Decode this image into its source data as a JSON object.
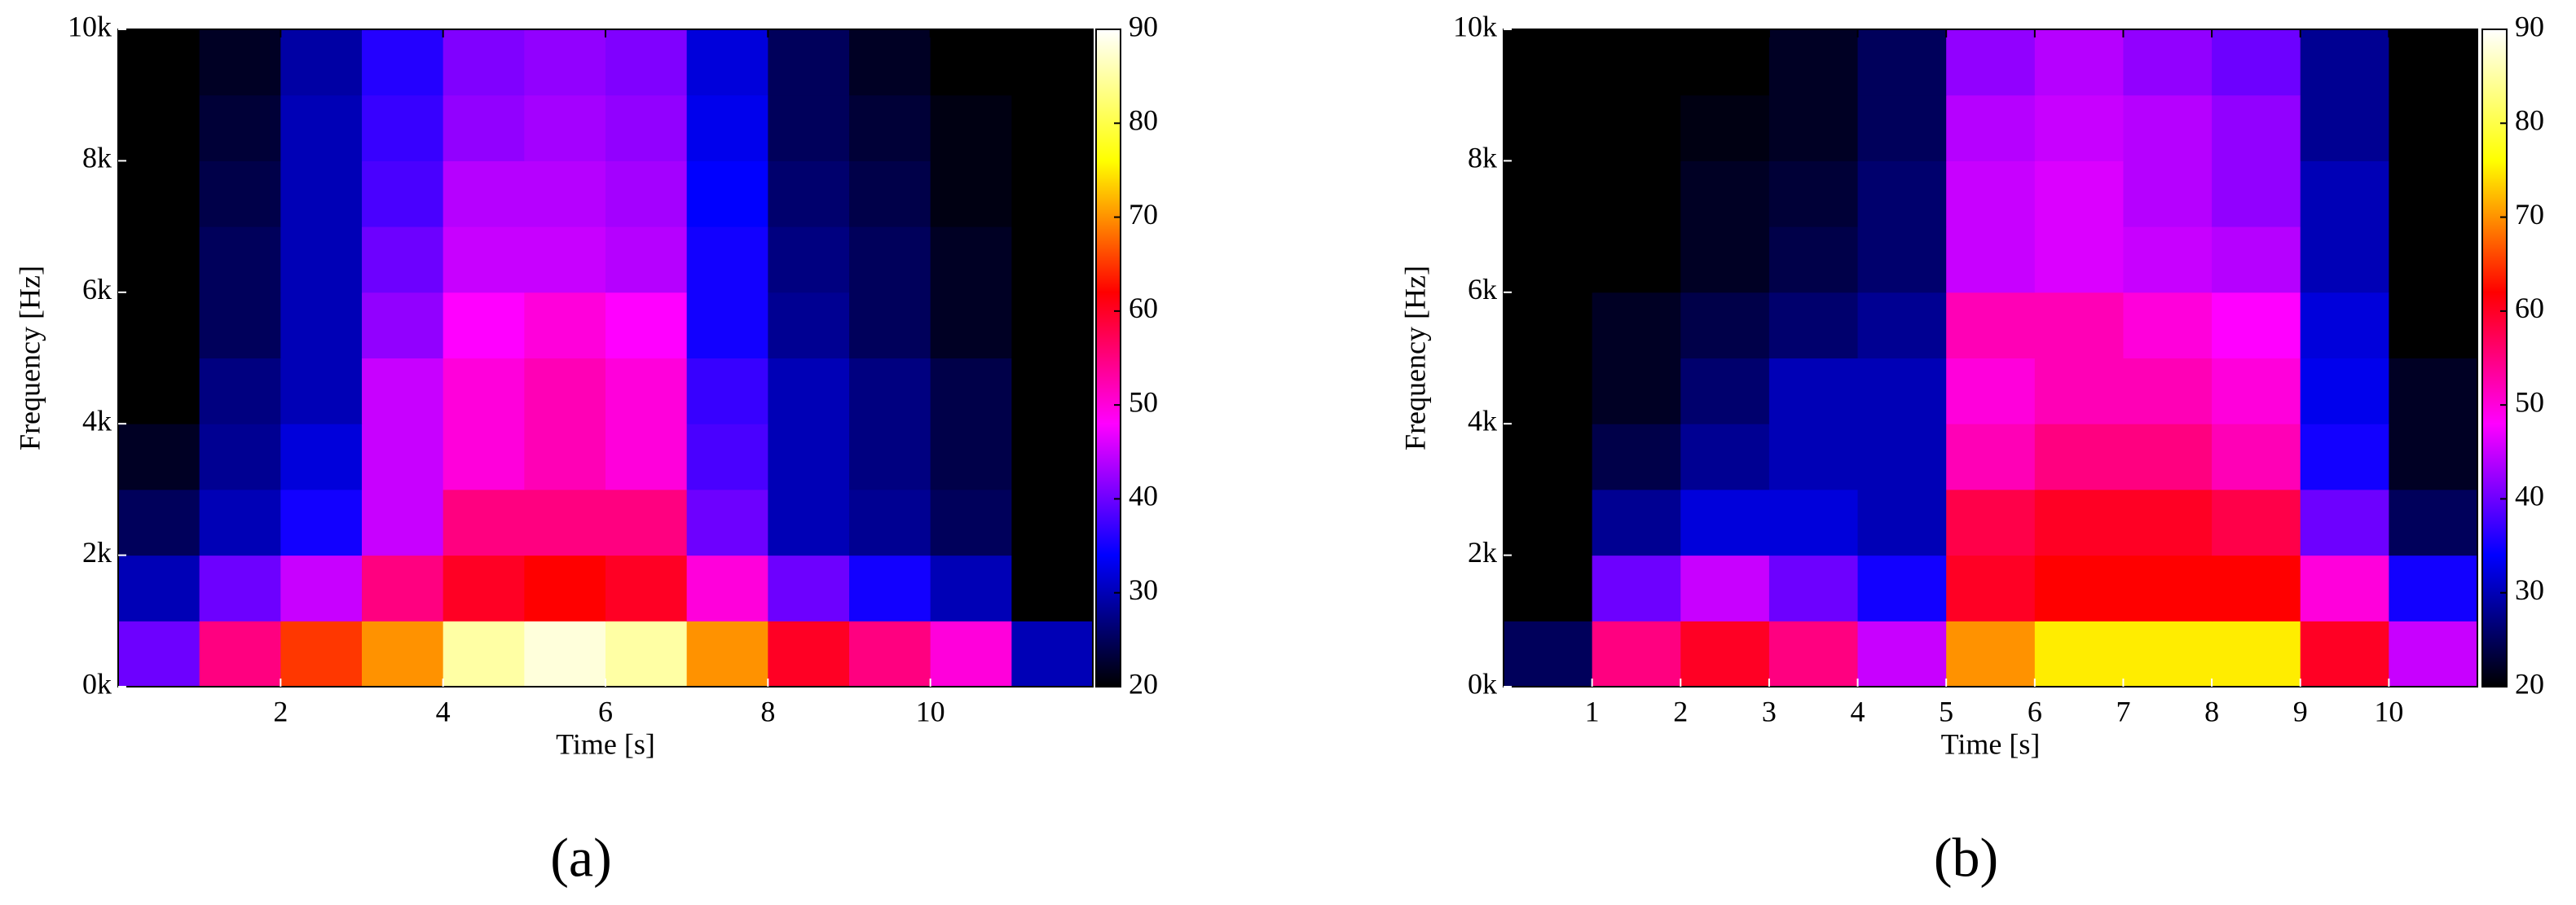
{
  "chart_data": [
    {
      "type": "heatmap",
      "panel_label": "(a)",
      "xlabel": "Time [s]",
      "ylabel": "Frequency [Hz]",
      "xlim": [
        0,
        12
      ],
      "xticks": [
        2,
        4,
        6,
        8,
        10
      ],
      "ylim": [
        0,
        10000
      ],
      "yticks": [
        {
          "value": 0,
          "label": "0k"
        },
        {
          "value": 2000,
          "label": "2k"
        },
        {
          "value": 4000,
          "label": "4k"
        },
        {
          "value": 6000,
          "label": "6k"
        },
        {
          "value": 8000,
          "label": "8k"
        },
        {
          "value": 10000,
          "label": "10k"
        }
      ],
      "clim": [
        20,
        90
      ],
      "cticks": [
        20,
        30,
        40,
        50,
        60,
        70,
        80,
        90
      ],
      "colorscale": [
        "#000000",
        "#0000ff",
        "#ff00ff",
        "#ff0000",
        "#ffff00",
        "#ffffff"
      ],
      "x": [
        0.5,
        1.5,
        2.5,
        3.5,
        4.5,
        5.5,
        6.5,
        7.5,
        8.5,
        9.5,
        10.5,
        11.5
      ],
      "y": [
        500,
        1500,
        2500,
        3500,
        4500,
        5500,
        6500,
        7500,
        8500,
        9500
      ],
      "values": [
        [
          40,
          55,
          65,
          70,
          85,
          88,
          85,
          70,
          60,
          55,
          50,
          30
        ],
        [
          30,
          40,
          45,
          55,
          60,
          62,
          60,
          50,
          40,
          35,
          30,
          20
        ],
        [
          25,
          30,
          35,
          45,
          55,
          55,
          55,
          40,
          30,
          28,
          25,
          20
        ],
        [
          22,
          28,
          32,
          45,
          50,
          52,
          50,
          38,
          30,
          27,
          24,
          20
        ],
        [
          20,
          27,
          30,
          45,
          50,
          52,
          50,
          37,
          30,
          27,
          24,
          20
        ],
        [
          20,
          25,
          30,
          42,
          48,
          50,
          48,
          35,
          28,
          25,
          22,
          20
        ],
        [
          20,
          25,
          30,
          40,
          45,
          45,
          44,
          35,
          27,
          25,
          22,
          20
        ],
        [
          20,
          24,
          30,
          38,
          44,
          44,
          43,
          34,
          26,
          24,
          21,
          20
        ],
        [
          20,
          23,
          30,
          37,
          42,
          43,
          42,
          33,
          25,
          23,
          21,
          20
        ],
        [
          20,
          22,
          29,
          36,
          41,
          42,
          41,
          32,
          25,
          22,
          20,
          20
        ]
      ]
    },
    {
      "type": "heatmap",
      "panel_label": "(b)",
      "xlabel": "Time [s]",
      "ylabel": "Frequency [Hz]",
      "xlim": [
        0,
        11
      ],
      "xticks": [
        1,
        2,
        3,
        4,
        5,
        6,
        7,
        8,
        9,
        10
      ],
      "ylim": [
        0,
        10000
      ],
      "yticks": [
        {
          "value": 0,
          "label": "0k"
        },
        {
          "value": 2000,
          "label": "2k"
        },
        {
          "value": 4000,
          "label": "4k"
        },
        {
          "value": 6000,
          "label": "6k"
        },
        {
          "value": 8000,
          "label": "8k"
        },
        {
          "value": 10000,
          "label": "10k"
        }
      ],
      "clim": [
        20,
        90
      ],
      "cticks": [
        20,
        30,
        40,
        50,
        60,
        70,
        80,
        90
      ],
      "colorscale": [
        "#000000",
        "#0000ff",
        "#ff00ff",
        "#ff0000",
        "#ffff00",
        "#ffffff"
      ],
      "x": [
        0.5,
        1.5,
        2.5,
        3.5,
        4.5,
        5.5,
        6.5,
        7.5,
        8.5,
        9.5,
        10.5
      ],
      "y": [
        500,
        1500,
        2500,
        3500,
        4500,
        5500,
        6500,
        7500,
        8500,
        9500
      ],
      "values": [
        [
          25,
          55,
          60,
          55,
          45,
          70,
          75,
          75,
          75,
          60,
          45
        ],
        [
          20,
          40,
          45,
          40,
          35,
          60,
          62,
          62,
          62,
          50,
          35
        ],
        [
          20,
          28,
          32,
          32,
          30,
          58,
          60,
          60,
          58,
          40,
          25
        ],
        [
          20,
          24,
          28,
          30,
          30,
          52,
          55,
          55,
          52,
          35,
          22
        ],
        [
          20,
          22,
          26,
          30,
          30,
          50,
          52,
          52,
          50,
          33,
          22
        ],
        [
          20,
          22,
          24,
          26,
          28,
          52,
          52,
          50,
          48,
          32,
          20
        ],
        [
          20,
          20,
          22,
          24,
          26,
          45,
          46,
          45,
          44,
          30,
          20
        ],
        [
          20,
          20,
          22,
          23,
          26,
          45,
          46,
          44,
          42,
          30,
          20
        ],
        [
          20,
          20,
          21,
          22,
          25,
          44,
          45,
          44,
          42,
          28,
          20
        ],
        [
          20,
          20,
          20,
          22,
          25,
          42,
          44,
          42,
          40,
          28,
          20
        ]
      ]
    }
  ]
}
